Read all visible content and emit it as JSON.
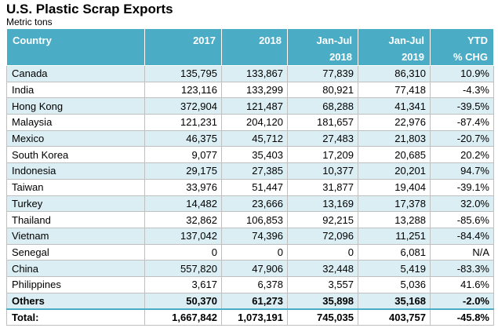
{
  "title": "U.S. Plastic Scrap Exports",
  "subtitle": "Metric tons",
  "columns": [
    {
      "line1": "Country",
      "line2": ""
    },
    {
      "line1": "2017",
      "line2": ""
    },
    {
      "line1": "2018",
      "line2": ""
    },
    {
      "line1": "Jan-Jul",
      "line2": "2018"
    },
    {
      "line1": "Jan-Jul",
      "line2": "2019"
    },
    {
      "line1": "YTD",
      "line2": "% CHG"
    }
  ],
  "rows": [
    [
      "Canada",
      "135,795",
      "133,867",
      "77,839",
      "86,310",
      "10.9%"
    ],
    [
      "India",
      "123,116",
      "133,299",
      "80,921",
      "77,418",
      "-4.3%"
    ],
    [
      "Hong Kong",
      "372,904",
      "121,487",
      "68,288",
      "41,341",
      "-39.5%"
    ],
    [
      "Malaysia",
      "121,231",
      "204,120",
      "181,657",
      "22,976",
      "-87.4%"
    ],
    [
      "Mexico",
      "46,375",
      "45,712",
      "27,483",
      "21,803",
      "-20.7%"
    ],
    [
      "South Korea",
      "9,077",
      "35,403",
      "17,209",
      "20,685",
      "20.2%"
    ],
    [
      "Indonesia",
      "29,175",
      "27,385",
      "10,377",
      "20,201",
      "94.7%"
    ],
    [
      "Taiwan",
      "33,976",
      "51,447",
      "31,877",
      "19,404",
      "-39.1%"
    ],
    [
      "Turkey",
      "14,482",
      "23,666",
      "13,169",
      "17,378",
      "32.0%"
    ],
    [
      "Thailand",
      "32,862",
      "106,853",
      "92,215",
      "13,288",
      "-85.6%"
    ],
    [
      "Vietnam",
      "137,042",
      "74,396",
      "72,096",
      "11,251",
      "-84.4%"
    ],
    [
      "Senegal",
      "0",
      "0",
      "0",
      "6,081",
      "N/A"
    ],
    [
      "China",
      "557,820",
      "47,906",
      "32,448",
      "5,419",
      "-83.3%"
    ],
    [
      "Philippines",
      "3,617",
      "6,378",
      "3,557",
      "5,036",
      "41.6%"
    ],
    [
      "Others",
      "50,370",
      "61,273",
      "35,898",
      "35,168",
      "-2.0%"
    ]
  ],
  "total": [
    "Total:",
    "1,667,842",
    "1,073,191",
    "745,035",
    "403,757",
    "-45.8%"
  ],
  "colors": {
    "header_bg": "#4BACC6",
    "band_bg": "#DAEEF3"
  }
}
